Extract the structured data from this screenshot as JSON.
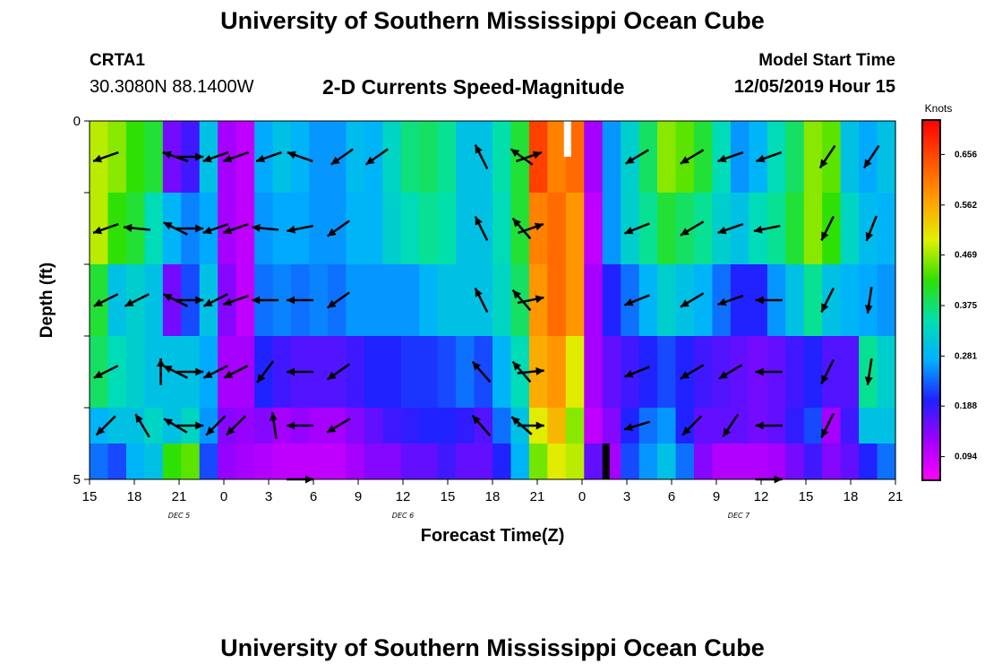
{
  "header": {
    "title": "University of Southern Mississippi Ocean Cube",
    "footer_title": "University of Southern Mississippi Ocean Cube",
    "station_id": "CRTA1",
    "station_coords": "30.3080N 88.1400W",
    "model_start_label": "Model Start Time",
    "model_start_value": "12/05/2019 Hour 15"
  },
  "chart_data": {
    "type": "heatmap",
    "title": "2-D Currents Speed-Magnitude",
    "xlabel": "Forecast Time(Z)",
    "ylabel": "Depth (ft)",
    "x_tick_labels": [
      "15",
      "18",
      "21",
      "0",
      "3",
      "6",
      "9",
      "12",
      "15",
      "18",
      "21",
      "0",
      "3",
      "6",
      "9",
      "12",
      "15",
      "18",
      "21"
    ],
    "y_tick_labels": [
      "0",
      "",
      "",
      "",
      "",
      "5"
    ],
    "ylim": [
      0,
      5
    ],
    "date_labels": [
      "DEC 5",
      "DEC 6",
      "DEC 7"
    ],
    "colorbar": {
      "unit": "Knots",
      "tick_labels": [
        "0.656",
        "0.562",
        "0.469",
        "0.375",
        "0.281",
        "0.188",
        "0.094"
      ],
      "range": [
        0.05,
        0.72
      ],
      "colors": [
        "#ff00ff",
        "#a000ff",
        "#2020ff",
        "#00b0ff",
        "#00e0b0",
        "#30e000",
        "#e0f000",
        "#ffa000",
        "#ff5000",
        "#ff0000"
      ]
    },
    "depth_layers": [
      "0-1",
      "1-2",
      "2-3",
      "3-4",
      "4-4.5",
      "4.5-5"
    ],
    "speed_knots": [
      [
        0.48,
        0.46,
        0.42,
        0.4,
        0.15,
        0.18,
        0.3,
        0.12,
        0.1,
        0.27,
        0.3,
        0.28,
        0.26,
        0.26,
        0.29,
        0.28,
        0.33,
        0.37,
        0.38,
        0.36,
        0.3,
        0.3,
        0.35,
        0.4,
        0.66,
        0.6,
        0.62,
        0.12,
        0.26,
        0.32,
        0.38,
        0.46,
        0.44,
        0.4,
        0.34,
        0.26,
        0.28,
        0.34,
        0.38,
        0.46,
        0.44,
        0.3,
        0.27,
        0.3
      ],
      [
        0.48,
        0.42,
        0.4,
        0.34,
        0.28,
        0.25,
        0.27,
        0.12,
        0.1,
        0.26,
        0.27,
        0.27,
        0.26,
        0.26,
        0.28,
        0.28,
        0.32,
        0.34,
        0.36,
        0.35,
        0.3,
        0.3,
        0.34,
        0.4,
        0.6,
        0.62,
        0.58,
        0.1,
        0.26,
        0.32,
        0.36,
        0.4,
        0.38,
        0.36,
        0.32,
        0.3,
        0.34,
        0.36,
        0.4,
        0.46,
        0.42,
        0.33,
        0.29,
        0.28
      ],
      [
        0.4,
        0.3,
        0.32,
        0.3,
        0.15,
        0.22,
        0.3,
        0.14,
        0.1,
        0.24,
        0.25,
        0.24,
        0.25,
        0.24,
        0.26,
        0.26,
        0.26,
        0.26,
        0.28,
        0.3,
        0.3,
        0.3,
        0.33,
        0.38,
        0.58,
        0.62,
        0.58,
        0.12,
        0.2,
        0.24,
        0.28,
        0.32,
        0.3,
        0.28,
        0.24,
        0.2,
        0.2,
        0.26,
        0.3,
        0.36,
        0.3,
        0.28,
        0.27,
        0.26
      ],
      [
        0.38,
        0.34,
        0.32,
        0.3,
        0.3,
        0.3,
        0.27,
        0.12,
        0.12,
        0.2,
        0.18,
        0.17,
        0.17,
        0.17,
        0.18,
        0.2,
        0.2,
        0.21,
        0.21,
        0.22,
        0.24,
        0.22,
        0.28,
        0.34,
        0.56,
        0.58,
        0.5,
        0.12,
        0.16,
        0.18,
        0.2,
        0.22,
        0.2,
        0.18,
        0.17,
        0.16,
        0.15,
        0.16,
        0.18,
        0.2,
        0.17,
        0.17,
        0.36,
        0.32
      ],
      [
        0.28,
        0.3,
        0.3,
        0.33,
        0.3,
        0.33,
        0.26,
        0.14,
        0.13,
        0.14,
        0.12,
        0.13,
        0.12,
        0.12,
        0.14,
        0.16,
        0.18,
        0.19,
        0.2,
        0.2,
        0.19,
        0.17,
        0.24,
        0.3,
        0.5,
        0.55,
        0.46,
        0.1,
        0.14,
        0.2,
        0.24,
        0.26,
        0.2,
        0.16,
        0.16,
        0.16,
        0.15,
        0.16,
        0.19,
        0.22,
        0.12,
        0.18,
        0.3,
        0.3
      ],
      [
        0.24,
        0.22,
        0.28,
        0.3,
        0.42,
        0.44,
        0.22,
        0.13,
        0.12,
        0.11,
        0.1,
        0.1,
        0.1,
        0.1,
        0.12,
        0.14,
        0.14,
        0.16,
        0.16,
        0.18,
        0.16,
        0.16,
        0.2,
        0.28,
        0.45,
        0.5,
        0.48,
        0.16,
        0.12,
        0.22,
        0.26,
        0.3,
        0.24,
        0.14,
        0.11,
        0.11,
        0.11,
        0.12,
        0.15,
        0.18,
        0.14,
        0.16,
        0.2,
        0.24
      ]
    ],
    "vectors": [
      {
        "x": 0.4,
        "depth": 0,
        "dx": 1,
        "dy": -0.35
      },
      {
        "x": 4.2,
        "depth": 0,
        "dx": 1,
        "dy": 0.35
      },
      {
        "x": 5,
        "depth": 0,
        "dx": -1,
        "dy": 0
      },
      {
        "x": 6.4,
        "depth": 0,
        "dx": 1,
        "dy": -0.35
      },
      {
        "x": 7.5,
        "depth": 0,
        "dx": 1,
        "dy": -0.35
      },
      {
        "x": 9.3,
        "depth": 0,
        "dx": 1,
        "dy": -0.35
      },
      {
        "x": 11,
        "depth": 0,
        "dx": 1,
        "dy": 0.35
      },
      {
        "x": 13.3,
        "depth": 0,
        "dx": 1,
        "dy": -0.7
      },
      {
        "x": 15.2,
        "depth": 0,
        "dx": 1,
        "dy": -0.7
      },
      {
        "x": 20.9,
        "depth": 0,
        "dx": 0.5,
        "dy": 1
      },
      {
        "x": 23.1,
        "depth": 0,
        "dx": 0.7,
        "dy": 0.5
      },
      {
        "x": 23.5,
        "depth": 0,
        "dx": -1,
        "dy": 0.35
      },
      {
        "x": 29.4,
        "depth": 0,
        "dx": 1,
        "dy": -0.6
      },
      {
        "x": 32.4,
        "depth": 0,
        "dx": 1,
        "dy": -0.6
      },
      {
        "x": 34.5,
        "depth": 0,
        "dx": 1,
        "dy": -0.35
      },
      {
        "x": 36.6,
        "depth": 0,
        "dx": 1,
        "dy": -0.35
      },
      {
        "x": 39.8,
        "depth": 0,
        "dx": 0.6,
        "dy": -0.9
      },
      {
        "x": 42.2,
        "depth": 0,
        "dx": 0.6,
        "dy": -0.9
      },
      {
        "x": 0.4,
        "depth": 1,
        "dx": 1,
        "dy": -0.35
      },
      {
        "x": 2.1,
        "depth": 1,
        "dx": 1,
        "dy": 0.1
      },
      {
        "x": 4.2,
        "depth": 1,
        "dx": 1,
        "dy": 0.5
      },
      {
        "x": 5,
        "depth": 1,
        "dx": -1,
        "dy": 0
      },
      {
        "x": 6.4,
        "depth": 1,
        "dx": 1,
        "dy": -0.35
      },
      {
        "x": 7.5,
        "depth": 1,
        "dx": 1,
        "dy": -0.35
      },
      {
        "x": 9.1,
        "depth": 1,
        "dx": 1,
        "dy": 0.1
      },
      {
        "x": 11,
        "depth": 1,
        "dx": 1,
        "dy": -0.2
      },
      {
        "x": 13.1,
        "depth": 1,
        "dx": 1,
        "dy": -0.7
      },
      {
        "x": 20.9,
        "depth": 1,
        "dx": 0.5,
        "dy": 1
      },
      {
        "x": 23.1,
        "depth": 1,
        "dx": 0.7,
        "dy": 0.8
      },
      {
        "x": 23.6,
        "depth": 1,
        "dx": -1,
        "dy": 0.35
      },
      {
        "x": 29.4,
        "depth": 1,
        "dx": 1,
        "dy": -0.4
      },
      {
        "x": 32.4,
        "depth": 1,
        "dx": 1,
        "dy": -0.6
      },
      {
        "x": 34.5,
        "depth": 1,
        "dx": 1,
        "dy": -0.35
      },
      {
        "x": 36.5,
        "depth": 1,
        "dx": 1,
        "dy": -0.2
      },
      {
        "x": 39.8,
        "depth": 1,
        "dx": 0.5,
        "dy": -1
      },
      {
        "x": 42.2,
        "depth": 1,
        "dx": 0.4,
        "dy": -1
      },
      {
        "x": 0.4,
        "depth": 2,
        "dx": 1,
        "dy": -0.5
      },
      {
        "x": 2.1,
        "depth": 2,
        "dx": 1,
        "dy": -0.5
      },
      {
        "x": 4.2,
        "depth": 2,
        "dx": 1,
        "dy": 0.5
      },
      {
        "x": 5,
        "depth": 2,
        "dx": -1,
        "dy": 0
      },
      {
        "x": 6.4,
        "depth": 2,
        "dx": 1,
        "dy": -0.5
      },
      {
        "x": 7.5,
        "depth": 2,
        "dx": 1,
        "dy": -0.35
      },
      {
        "x": 9.1,
        "depth": 2,
        "dx": 1,
        "dy": 0
      },
      {
        "x": 11,
        "depth": 2,
        "dx": 1,
        "dy": 0
      },
      {
        "x": 13.1,
        "depth": 2,
        "dx": 1,
        "dy": -0.7
      },
      {
        "x": 20.9,
        "depth": 2,
        "dx": 0.5,
        "dy": 1
      },
      {
        "x": 23.1,
        "depth": 2,
        "dx": 0.7,
        "dy": 0.8
      },
      {
        "x": 23.6,
        "depth": 2,
        "dx": -1,
        "dy": 0.2
      },
      {
        "x": 29.4,
        "depth": 2,
        "dx": 1,
        "dy": -0.4
      },
      {
        "x": 32.4,
        "depth": 2,
        "dx": 1,
        "dy": -0.6
      },
      {
        "x": 34.5,
        "depth": 2,
        "dx": 1,
        "dy": -0.35
      },
      {
        "x": 36.6,
        "depth": 2,
        "dx": 1,
        "dy": 0
      },
      {
        "x": 39.8,
        "depth": 2,
        "dx": 0.5,
        "dy": -1
      },
      {
        "x": 42.1,
        "depth": 2,
        "dx": 0.15,
        "dy": -1
      },
      {
        "x": 0.4,
        "depth": 3,
        "dx": 1,
        "dy": -0.5
      },
      {
        "x": 3.4,
        "depth": 3,
        "dx": 0,
        "dy": 1
      },
      {
        "x": 4.2,
        "depth": 3,
        "dx": 1,
        "dy": 0.5
      },
      {
        "x": 5,
        "depth": 3,
        "dx": -1,
        "dy": 0
      },
      {
        "x": 6.4,
        "depth": 3,
        "dx": 1,
        "dy": -0.5
      },
      {
        "x": 7.5,
        "depth": 3,
        "dx": 1,
        "dy": -0.5
      },
      {
        "x": 9.1,
        "depth": 3,
        "dx": 0.6,
        "dy": -0.8
      },
      {
        "x": 11,
        "depth": 3,
        "dx": 1,
        "dy": 0
      },
      {
        "x": 13.1,
        "depth": 3,
        "dx": 1,
        "dy": -0.7
      },
      {
        "x": 20.9,
        "depth": 3,
        "dx": 0.7,
        "dy": 0.8
      },
      {
        "x": 23.1,
        "depth": 3,
        "dx": 0.7,
        "dy": 0.8
      },
      {
        "x": 23.6,
        "depth": 3,
        "dx": -1,
        "dy": 0.1
      },
      {
        "x": 29.4,
        "depth": 3,
        "dx": 1,
        "dy": -0.4
      },
      {
        "x": 32.4,
        "depth": 3,
        "dx": 1,
        "dy": -0.6
      },
      {
        "x": 34.5,
        "depth": 3,
        "dx": 1,
        "dy": -0.6
      },
      {
        "x": 36.6,
        "depth": 3,
        "dx": 1,
        "dy": 0
      },
      {
        "x": 39.8,
        "depth": 3,
        "dx": 0.5,
        "dy": -1
      },
      {
        "x": 42.1,
        "depth": 3,
        "dx": 0.15,
        "dy": -1
      },
      {
        "x": 0.4,
        "depth": 4,
        "dx": 0.8,
        "dy": -0.8
      },
      {
        "x": 2.4,
        "depth": 4,
        "dx": 0.6,
        "dy": 1
      },
      {
        "x": 4.2,
        "depth": 4,
        "dx": 1,
        "dy": 0.6
      },
      {
        "x": 5,
        "depth": 4,
        "dx": -1,
        "dy": 0
      },
      {
        "x": 6.4,
        "depth": 4,
        "dx": 0.8,
        "dy": -0.8
      },
      {
        "x": 7.5,
        "depth": 4,
        "dx": 0.8,
        "dy": -0.8
      },
      {
        "x": 9.6,
        "depth": 4,
        "dx": 0.15,
        "dy": 1
      },
      {
        "x": 11,
        "depth": 4,
        "dx": 1,
        "dy": 0
      },
      {
        "x": 13.1,
        "depth": 4,
        "dx": 1,
        "dy": -0.6
      },
      {
        "x": 20.9,
        "depth": 4,
        "dx": 0.7,
        "dy": 0.8
      },
      {
        "x": 23.1,
        "depth": 4,
        "dx": 0.8,
        "dy": 0.7
      },
      {
        "x": 23.6,
        "depth": 4,
        "dx": -1,
        "dy": 0
      },
      {
        "x": 29.4,
        "depth": 4,
        "dx": 1,
        "dy": -0.3
      },
      {
        "x": 32.4,
        "depth": 4,
        "dx": 0.8,
        "dy": -0.8
      },
      {
        "x": 34.5,
        "depth": 4,
        "dx": 0.6,
        "dy": -0.9
      },
      {
        "x": 36.6,
        "depth": 4,
        "dx": 1,
        "dy": 0
      },
      {
        "x": 39.8,
        "depth": 4,
        "dx": 0.5,
        "dy": -1
      },
      {
        "x": 11,
        "depth": 5,
        "dx": -1,
        "dy": 0
      },
      {
        "x": 36.6,
        "depth": 5,
        "dx": -1,
        "dy": 0
      }
    ],
    "missing_marks": [
      {
        "x": 25.9,
        "depth_from": 0,
        "depth_to": 0.5,
        "color": "#ffffff"
      },
      {
        "x": 28.0,
        "depth_from": 4.5,
        "depth_to": 5,
        "color": "#000000"
      }
    ]
  }
}
